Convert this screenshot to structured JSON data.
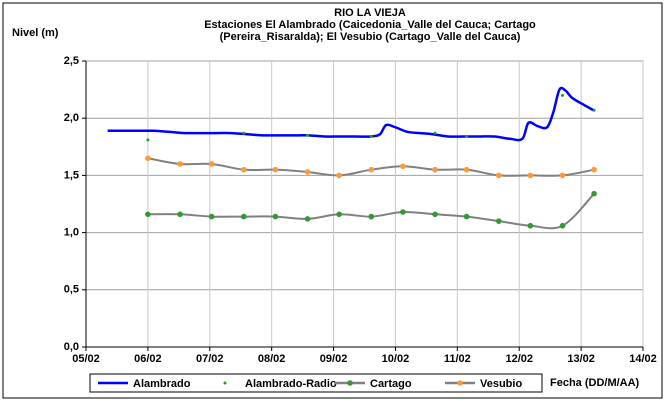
{
  "chart_data": {
    "type": "line",
    "title": "RIO LA VIEJA",
    "subtitle": [
      "Estaciones El Alambrado (Caicedonia_Valle del Cauca; Cartago",
      "(Pereira_Risaralda);  El Vesubio (Cartago_Valle del Cauca)"
    ],
    "y_label": "Nivel (m)",
    "x_label": "Fecha (DD/M/AA)",
    "xlim": [
      5,
      14
    ],
    "xticks": [
      {
        "value": 5,
        "label": "05/02"
      },
      {
        "value": 6,
        "label": "06/02"
      },
      {
        "value": 7,
        "label": "07/02"
      },
      {
        "value": 8,
        "label": "08/02"
      },
      {
        "value": 9,
        "label": "09/02"
      },
      {
        "value": 10,
        "label": "10/02"
      },
      {
        "value": 11,
        "label": "11/02"
      },
      {
        "value": 12,
        "label": "12/02"
      },
      {
        "value": 13,
        "label": "13/02"
      },
      {
        "value": 14,
        "label": "14/02"
      }
    ],
    "ylim": [
      0,
      2.5
    ],
    "yticks": [
      {
        "value": 0,
        "label": "0,0"
      },
      {
        "value": 0.5,
        "label": "0,5"
      },
      {
        "value": 1,
        "label": "1,0"
      },
      {
        "value": 1.5,
        "label": "1,5"
      },
      {
        "value": 2,
        "label": "2,0"
      },
      {
        "value": 2.5,
        "label": "2,5"
      }
    ],
    "grid": true,
    "legend": "bottom",
    "series": [
      {
        "name": "Alambrado",
        "style": "line",
        "color": "#0000ff",
        "x": [
          5.35,
          5.6,
          5.85,
          6.1,
          6.35,
          6.6,
          6.85,
          7.1,
          7.35,
          7.6,
          7.85,
          8.1,
          8.35,
          8.6,
          8.85,
          9.1,
          9.35,
          9.6,
          9.75,
          9.85,
          10.0,
          10.2,
          10.4,
          10.6,
          10.85,
          11.1,
          11.35,
          11.6,
          11.85,
          12.05,
          12.15,
          12.3,
          12.45,
          12.55,
          12.65,
          12.75,
          12.85,
          13.0,
          13.2
        ],
        "values": [
          1.89,
          1.89,
          1.89,
          1.89,
          1.88,
          1.87,
          1.87,
          1.87,
          1.87,
          1.86,
          1.85,
          1.85,
          1.85,
          1.85,
          1.84,
          1.84,
          1.84,
          1.84,
          1.86,
          1.94,
          1.92,
          1.88,
          1.87,
          1.86,
          1.84,
          1.84,
          1.84,
          1.84,
          1.82,
          1.82,
          1.96,
          1.93,
          1.92,
          2.05,
          2.25,
          2.24,
          2.18,
          2.13,
          2.07
        ]
      },
      {
        "name": "Alambrado-Radio",
        "style": "dots",
        "color": "#22a022",
        "x": [
          6.0,
          7.55,
          8.58,
          9.61,
          10.64,
          11.15,
          12.7,
          13.21
        ],
        "values": [
          1.81,
          1.87,
          1.85,
          1.84,
          1.87,
          1.84,
          2.2,
          2.07
        ]
      },
      {
        "name": "Cartago",
        "style": "line-markers",
        "color": "#339933",
        "line_color": "#808080",
        "x": [
          6.0,
          6.52,
          7.03,
          7.55,
          8.06,
          8.58,
          9.09,
          9.61,
          10.12,
          10.64,
          11.15,
          11.67,
          12.18,
          12.7,
          13.21
        ],
        "values": [
          1.16,
          1.16,
          1.14,
          1.14,
          1.14,
          1.12,
          1.16,
          1.14,
          1.18,
          1.16,
          1.14,
          1.1,
          1.06,
          1.06,
          1.34
        ]
      },
      {
        "name": "Vesubio",
        "style": "line-markers",
        "color": "#ff9933",
        "line_color": "#808080",
        "x": [
          6.0,
          6.52,
          7.03,
          7.55,
          8.06,
          8.58,
          9.09,
          9.61,
          10.12,
          10.64,
          11.15,
          11.67,
          12.18,
          12.7,
          13.21
        ],
        "values": [
          1.65,
          1.6,
          1.6,
          1.55,
          1.55,
          1.53,
          1.5,
          1.55,
          1.58,
          1.55,
          1.55,
          1.5,
          1.5,
          1.5,
          1.55
        ]
      }
    ]
  }
}
